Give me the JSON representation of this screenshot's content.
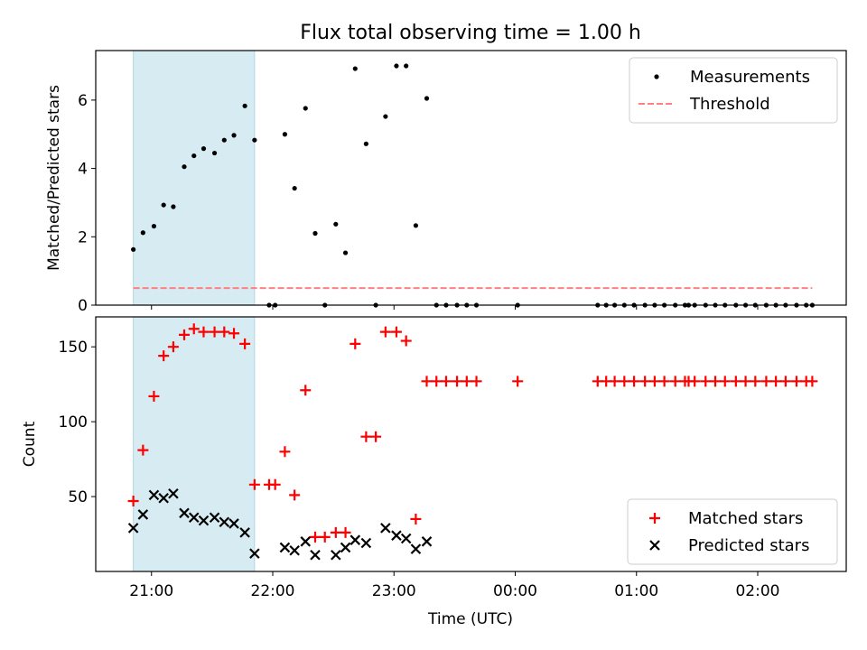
{
  "chart_data": {
    "type": "scatter",
    "title": "Flux total observing time = 1.00 h",
    "xlabel": "Time (UTC)",
    "x_unit": "hours since 00:00 UTC (evening values negative)",
    "xlim": [
      -3.46,
      2.73
    ],
    "x_ticks": [
      {
        "value": -3,
        "label": "21:00"
      },
      {
        "value": -2,
        "label": "22:00"
      },
      {
        "value": -1,
        "label": "23:00"
      },
      {
        "value": 0,
        "label": "00:00"
      },
      {
        "value": 1,
        "label": "01:00"
      },
      {
        "value": 2,
        "label": "02:00"
      }
    ],
    "shaded_span": {
      "x": [
        -3.15,
        -2.15
      ],
      "color": "#add8e6"
    },
    "top": {
      "ylabel": "Matched/Predicted stars",
      "ylim": [
        0,
        7.45
      ],
      "yticks": [
        0,
        2,
        4,
        6
      ],
      "legend_position": "upper right",
      "threshold": {
        "name": "Threshold",
        "value": 0.5,
        "x_range": [
          -3.15,
          2.45
        ],
        "color": "#ff8080"
      },
      "series": [
        {
          "name": "Measurements",
          "color": "#000000",
          "points": [
            [
              -3.15,
              1.63
            ],
            [
              -3.07,
              2.12
            ],
            [
              -2.98,
              2.31
            ],
            [
              -2.9,
              2.93
            ],
            [
              -2.82,
              2.88
            ],
            [
              -2.73,
              4.05
            ],
            [
              -2.65,
              4.37
            ],
            [
              -2.57,
              4.58
            ],
            [
              -2.48,
              4.45
            ],
            [
              -2.4,
              4.83
            ],
            [
              -2.32,
              4.97
            ],
            [
              -2.23,
              5.83
            ],
            [
              -2.15,
              4.83
            ],
            [
              -2.03,
              0.0
            ],
            [
              -1.98,
              0.0
            ],
            [
              -1.9,
              5.0
            ],
            [
              -1.82,
              3.42
            ],
            [
              -1.73,
              5.76
            ],
            [
              -1.65,
              2.1
            ],
            [
              -1.57,
              0.0
            ],
            [
              -1.48,
              2.37
            ],
            [
              -1.4,
              1.53
            ],
            [
              -1.32,
              6.92
            ],
            [
              -1.23,
              4.72
            ],
            [
              -1.15,
              0.0
            ],
            [
              -1.07,
              5.52
            ],
            [
              -0.98,
              7.0
            ],
            [
              -0.9,
              7.0
            ],
            [
              -0.82,
              2.33
            ],
            [
              -0.73,
              6.05
            ],
            [
              -0.65,
              0.0
            ],
            [
              -0.57,
              0.0
            ],
            [
              -0.48,
              0.0
            ],
            [
              -0.4,
              0.0
            ],
            [
              -0.32,
              0.0
            ],
            [
              0.02,
              0.0
            ],
            [
              0.68,
              0.0
            ],
            [
              0.75,
              0.0
            ],
            [
              0.82,
              0.0
            ],
            [
              0.9,
              0.0
            ],
            [
              0.98,
              0.0
            ],
            [
              1.07,
              0.0
            ],
            [
              1.15,
              0.0
            ],
            [
              1.23,
              0.0
            ],
            [
              1.32,
              0.0
            ],
            [
              1.4,
              0.0
            ],
            [
              1.43,
              0.0
            ],
            [
              1.48,
              0.0
            ],
            [
              1.57,
              0.0
            ],
            [
              1.65,
              0.0
            ],
            [
              1.73,
              0.0
            ],
            [
              1.82,
              0.0
            ],
            [
              1.9,
              0.0
            ],
            [
              1.98,
              0.0
            ],
            [
              2.07,
              0.0
            ],
            [
              2.15,
              0.0
            ],
            [
              2.23,
              0.0
            ],
            [
              2.32,
              0.0
            ],
            [
              2.4,
              0.0
            ],
            [
              2.45,
              0.0
            ]
          ]
        }
      ]
    },
    "bottom": {
      "ylabel": "Count",
      "ylim": [
        0,
        170
      ],
      "yticks": [
        50,
        100,
        150
      ],
      "legend_position": "lower right",
      "series": [
        {
          "name": "Matched stars",
          "marker": "+",
          "color": "#ff0000",
          "points": [
            [
              -3.15,
              47
            ],
            [
              -3.07,
              81
            ],
            [
              -2.98,
              117
            ],
            [
              -2.9,
              144
            ],
            [
              -2.82,
              150
            ],
            [
              -2.73,
              158
            ],
            [
              -2.65,
              162
            ],
            [
              -2.57,
              160
            ],
            [
              -2.48,
              160
            ],
            [
              -2.4,
              160
            ],
            [
              -2.32,
              159
            ],
            [
              -2.23,
              152
            ],
            [
              -2.15,
              58
            ],
            [
              -2.03,
              58
            ],
            [
              -1.98,
              58
            ],
            [
              -1.9,
              80
            ],
            [
              -1.82,
              51
            ],
            [
              -1.73,
              121
            ],
            [
              -1.65,
              23
            ],
            [
              -1.57,
              23
            ],
            [
              -1.48,
              26
            ],
            [
              -1.4,
              26
            ],
            [
              -1.32,
              152
            ],
            [
              -1.23,
              90
            ],
            [
              -1.15,
              90
            ],
            [
              -1.07,
              160
            ],
            [
              -0.98,
              160
            ],
            [
              -0.9,
              154
            ],
            [
              -0.82,
              35
            ],
            [
              -0.73,
              127
            ],
            [
              -0.65,
              127
            ],
            [
              -0.57,
              127
            ],
            [
              -0.48,
              127
            ],
            [
              -0.4,
              127
            ],
            [
              -0.32,
              127
            ],
            [
              0.02,
              127
            ],
            [
              0.68,
              127
            ],
            [
              0.75,
              127
            ],
            [
              0.82,
              127
            ],
            [
              0.9,
              127
            ],
            [
              0.98,
              127
            ],
            [
              1.07,
              127
            ],
            [
              1.15,
              127
            ],
            [
              1.23,
              127
            ],
            [
              1.32,
              127
            ],
            [
              1.4,
              127
            ],
            [
              1.43,
              127
            ],
            [
              1.48,
              127
            ],
            [
              1.57,
              127
            ],
            [
              1.65,
              127
            ],
            [
              1.73,
              127
            ],
            [
              1.82,
              127
            ],
            [
              1.9,
              127
            ],
            [
              1.98,
              127
            ],
            [
              2.07,
              127
            ],
            [
              2.15,
              127
            ],
            [
              2.23,
              127
            ],
            [
              2.32,
              127
            ],
            [
              2.4,
              127
            ],
            [
              2.45,
              127
            ]
          ]
        },
        {
          "name": "Predicted stars",
          "marker": "x",
          "color": "#000000",
          "points": [
            [
              -3.15,
              29
            ],
            [
              -3.07,
              38
            ],
            [
              -2.98,
              51
            ],
            [
              -2.9,
              49
            ],
            [
              -2.82,
              52
            ],
            [
              -2.73,
              39
            ],
            [
              -2.65,
              36
            ],
            [
              -2.57,
              34
            ],
            [
              -2.48,
              36
            ],
            [
              -2.4,
              33
            ],
            [
              -2.32,
              32
            ],
            [
              -2.23,
              26
            ],
            [
              -2.15,
              12
            ],
            [
              -1.9,
              16
            ],
            [
              -1.82,
              14
            ],
            [
              -1.73,
              20
            ],
            [
              -1.65,
              11
            ],
            [
              -1.48,
              11
            ],
            [
              -1.4,
              16
            ],
            [
              -1.32,
              21
            ],
            [
              -1.23,
              19
            ],
            [
              -1.07,
              29
            ],
            [
              -0.98,
              24
            ],
            [
              -0.9,
              22
            ],
            [
              -0.82,
              15
            ],
            [
              -0.73,
              20
            ]
          ]
        }
      ]
    }
  }
}
